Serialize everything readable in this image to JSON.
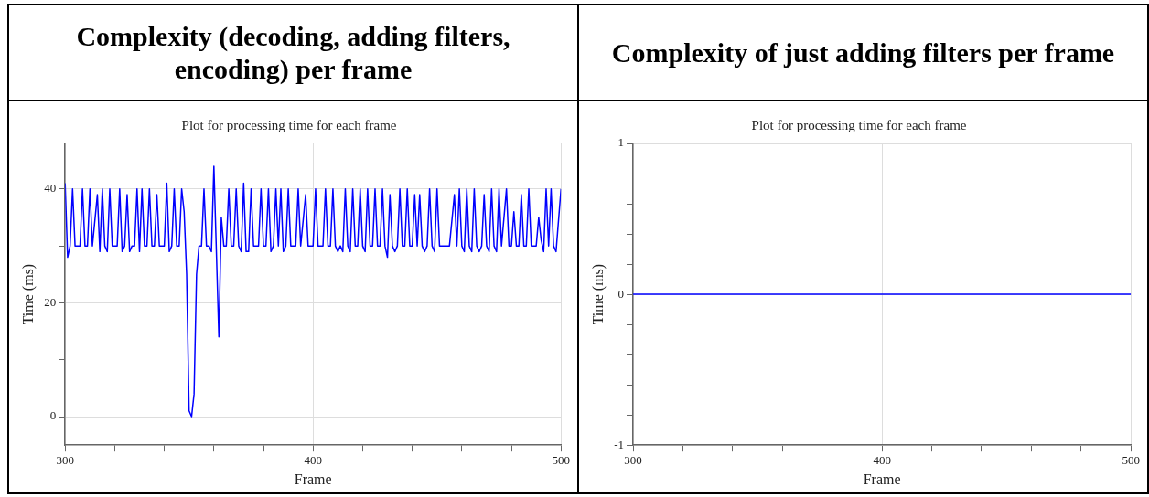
{
  "chart_data": [
    {
      "type": "line",
      "title": "Complexity (decoding, adding filters, encoding) per frame",
      "subtitle": "Plot for processing time for each frame",
      "xlabel": "Frame",
      "ylabel": "Time (ms)",
      "x": [
        300,
        301,
        302,
        303,
        304,
        306,
        307,
        308,
        309,
        310,
        311,
        313,
        314,
        315,
        316,
        317,
        318,
        319,
        321,
        322,
        323,
        324,
        325,
        326,
        327,
        328,
        329,
        330,
        331,
        332,
        333,
        334,
        335,
        336,
        337,
        338,
        340,
        341,
        342,
        343,
        344,
        345,
        346,
        347,
        348,
        349,
        350,
        351,
        352,
        353,
        354,
        355,
        356,
        357,
        358,
        359,
        360,
        362,
        363,
        364,
        365,
        366,
        367,
        368,
        369,
        370,
        371,
        372,
        373,
        374,
        375,
        376,
        378,
        379,
        380,
        381,
        382,
        383,
        384,
        385,
        386,
        387,
        388,
        389,
        390,
        391,
        393,
        394,
        395,
        397,
        398,
        400,
        401,
        402,
        404,
        405,
        406,
        407,
        408,
        409,
        410,
        411,
        412,
        413,
        414,
        415,
        416,
        417,
        418,
        419,
        420,
        421,
        422,
        423,
        424,
        425,
        426,
        427,
        428,
        429,
        430,
        431,
        432,
        433,
        434,
        435,
        436,
        437,
        438,
        439,
        440,
        441,
        442,
        443,
        444,
        445,
        446,
        447,
        448,
        449,
        450,
        451,
        453,
        454,
        455,
        457,
        458,
        459,
        460,
        461,
        462,
        463,
        464,
        465,
        466,
        467,
        468,
        469,
        470,
        471,
        472,
        473,
        474,
        475,
        476,
        478,
        479,
        480,
        481,
        482,
        483,
        484,
        485,
        486,
        487,
        488,
        490,
        491,
        492,
        493,
        494,
        495,
        496,
        497,
        498,
        500
      ],
      "series": [
        {
          "color": "#0000ff",
          "values": [
            41,
            28,
            30,
            40,
            30,
            30,
            40,
            30,
            30,
            40,
            30,
            39,
            29,
            40,
            30,
            29,
            40,
            30,
            30,
            40,
            29,
            30,
            39,
            29,
            30,
            30,
            40,
            29,
            40,
            30,
            30,
            40,
            30,
            30,
            39,
            30,
            30,
            41,
            29,
            30,
            40,
            30,
            30,
            40,
            36,
            25,
            1,
            0,
            4,
            25,
            30,
            30,
            40,
            30,
            30,
            29,
            44,
            14,
            35,
            30,
            30,
            40,
            30,
            30,
            40,
            30,
            29,
            41,
            29,
            29,
            40,
            30,
            30,
            40,
            30,
            30,
            40,
            29,
            30,
            40,
            30,
            40,
            29,
            30,
            40,
            30,
            30,
            40,
            30,
            39,
            30,
            30,
            40,
            30,
            30,
            40,
            30,
            30,
            40,
            30,
            29,
            30,
            29,
            40,
            30,
            29,
            40,
            30,
            30,
            40,
            30,
            29,
            40,
            30,
            30,
            40,
            30,
            30,
            40,
            30,
            28,
            39,
            30,
            29,
            30,
            40,
            30,
            30,
            40,
            30,
            30,
            39,
            30,
            39,
            30,
            29,
            30,
            40,
            30,
            29,
            40,
            30,
            30,
            30,
            30,
            39,
            30,
            40,
            30,
            29,
            40,
            30,
            29,
            40,
            30,
            29,
            30,
            39,
            30,
            29,
            40,
            30,
            29,
            40,
            30,
            40,
            30,
            30,
            36,
            30,
            30,
            39,
            30,
            30,
            40,
            30,
            30,
            35,
            31,
            29,
            40,
            30,
            40,
            30,
            29,
            40
          ]
        }
      ],
      "xlim": [
        300,
        500
      ],
      "ylim": [
        -5,
        48
      ],
      "xticks": [
        300,
        {
          "value": 320,
          "label": null
        },
        {
          "value": 340,
          "label": null
        },
        {
          "value": 360,
          "label": null
        },
        {
          "value": 380,
          "label": null
        },
        400,
        {
          "value": 420,
          "label": null
        },
        {
          "value": 440,
          "label": null
        },
        {
          "value": 460,
          "label": null
        },
        {
          "value": 480,
          "label": null
        },
        500
      ],
      "yticks": [
        0,
        {
          "value": 10,
          "label": null
        },
        20,
        {
          "value": 30,
          "label": null
        },
        40
      ],
      "grid": true
    },
    {
      "type": "line",
      "title": "Complexity of just adding filters per frame",
      "subtitle": "Plot for processing time for each frame",
      "xlabel": "Frame",
      "ylabel": "Time (ms)",
      "x": [
        300,
        500
      ],
      "series": [
        {
          "color": "#0000ff",
          "values": [
            0,
            0
          ]
        }
      ],
      "xlim": [
        300,
        500
      ],
      "ylim": [
        -1,
        1
      ],
      "xticks": [
        300,
        {
          "value": 320,
          "label": null
        },
        {
          "value": 340,
          "label": null
        },
        {
          "value": 360,
          "label": null
        },
        {
          "value": 380,
          "label": null
        },
        400,
        {
          "value": 420,
          "label": null
        },
        {
          "value": 440,
          "label": null
        },
        {
          "value": 460,
          "label": null
        },
        {
          "value": 480,
          "label": null
        },
        500
      ],
      "yticks": [
        -1,
        {
          "value": -0.8,
          "label": null
        },
        {
          "value": -0.6,
          "label": null
        },
        {
          "value": -0.4,
          "label": null
        },
        {
          "value": -0.2,
          "label": null
        },
        0,
        {
          "value": 0.2,
          "label": null
        },
        {
          "value": 0.4,
          "label": null
        },
        {
          "value": 0.6,
          "label": null
        },
        {
          "value": 0.8,
          "label": null
        },
        1
      ],
      "grid": true
    }
  ]
}
